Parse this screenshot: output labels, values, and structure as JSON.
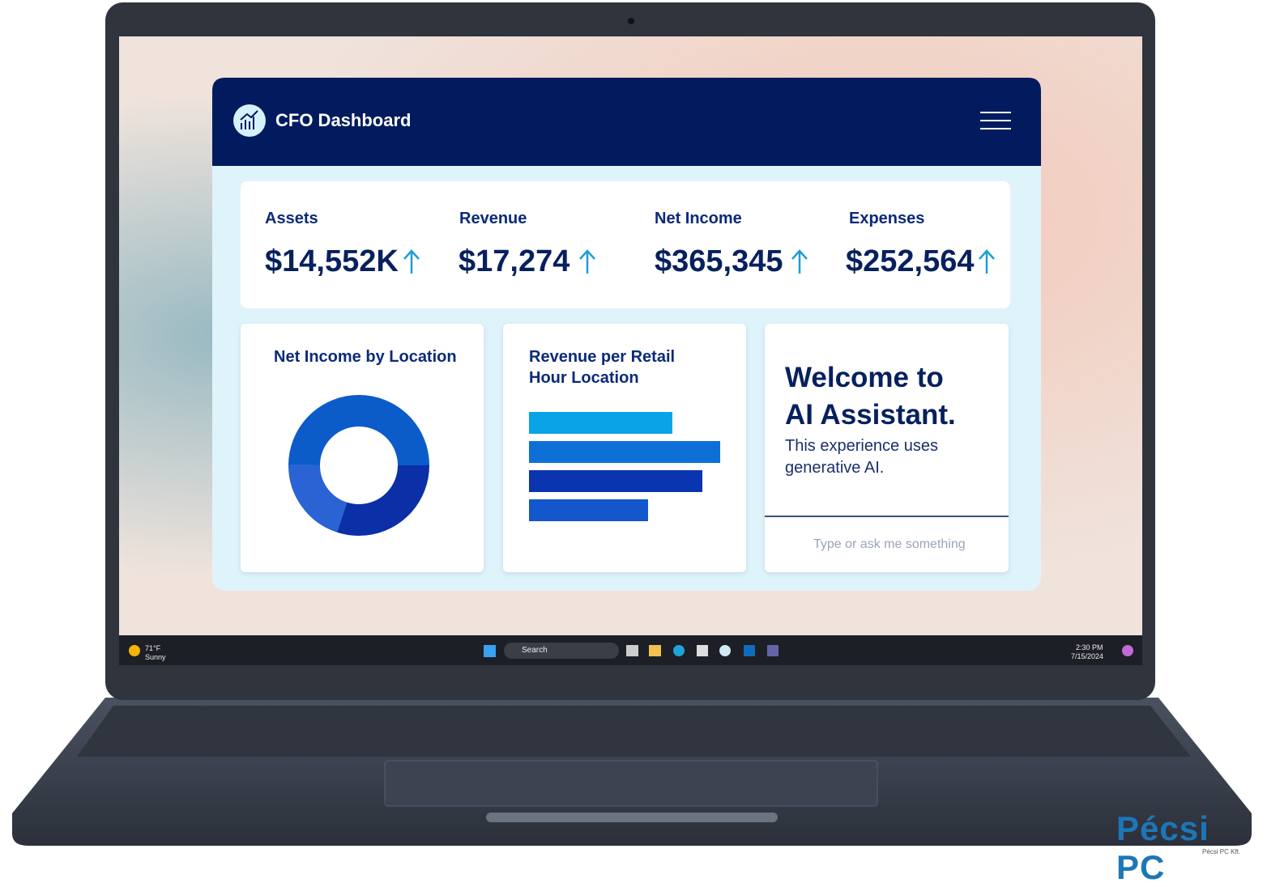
{
  "dashboard": {
    "title": "CFO Dashboard",
    "kpis": [
      {
        "label": "Assets",
        "value": "$14,552K"
      },
      {
        "label": "Revenue",
        "value": "$17,274"
      },
      {
        "label": "Net Income",
        "value": "$365,345"
      },
      {
        "label": "Expenses",
        "value": "$252,564"
      }
    ],
    "panels": [
      {
        "title": "Net Income by Location",
        "chart_data": {
          "type": "pie",
          "values": [
            30,
            20,
            50
          ],
          "colors": [
            "#0a2fa6",
            "#2a63d3",
            "#0b5cc9"
          ]
        }
      },
      {
        "title": "Revenue per Retail Hour Location",
        "chart_data": {
          "type": "bar",
          "values": [
            177,
            236,
            214,
            147
          ],
          "colors": [
            "#0aa3e8",
            "#0e6fd6",
            "#0a34b0",
            "#1456cc"
          ]
        }
      }
    ],
    "assistant": {
      "heading": "Welcome to AI Assistant.",
      "text": "This experience uses generative AI.",
      "placeholder": "Type or ask me something"
    }
  },
  "taskbar": {
    "temperature": "71°F",
    "weather": "Sunny",
    "search": "Search",
    "time": "2:30 PM",
    "date": "7/15/2024"
  },
  "watermark": {
    "brand": "Pécsi PC",
    "company": "Pécsi PC Kft."
  }
}
